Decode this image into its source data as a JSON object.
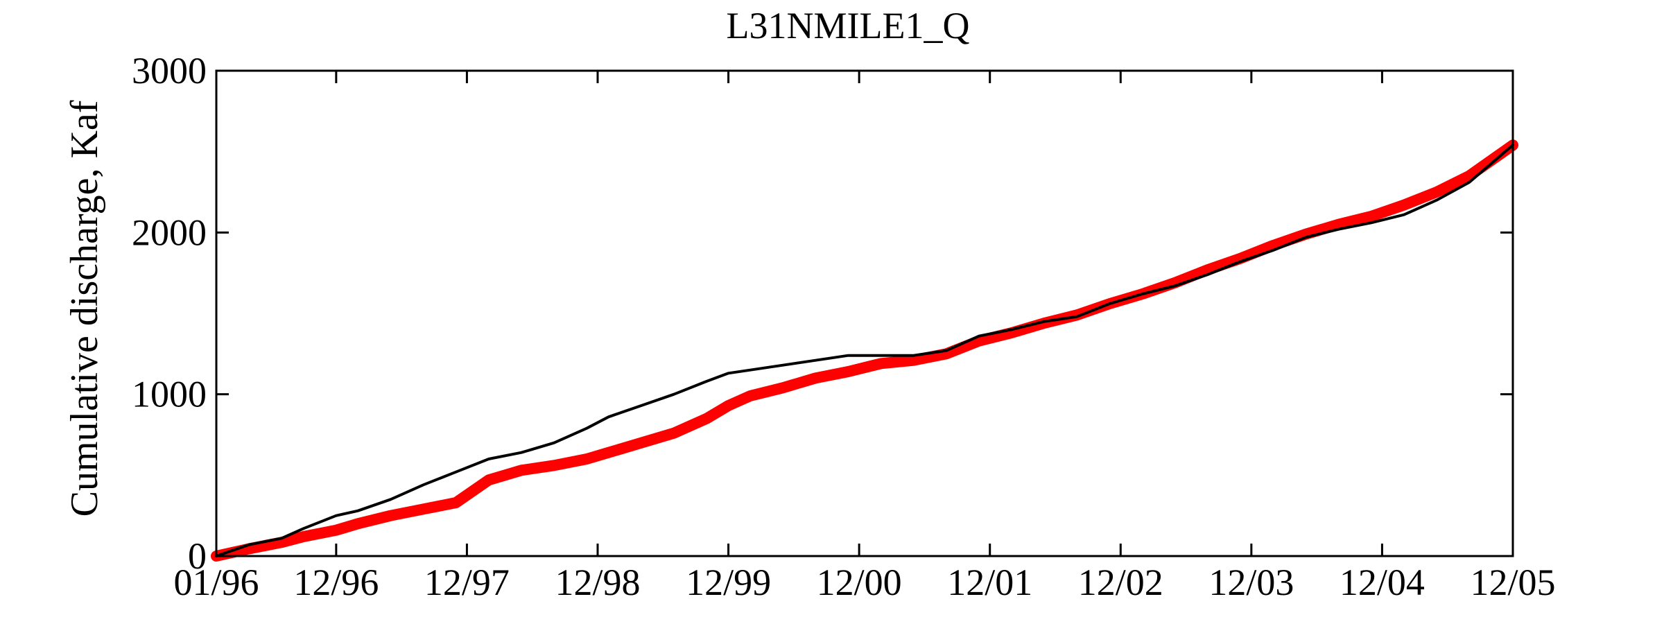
{
  "chart_data": {
    "type": "line",
    "title": "L31NMILE1_Q",
    "xlabel": "",
    "ylabel": "Cumulative discharge, Kaf",
    "ylim": [
      0,
      3000
    ],
    "xlim": [
      "1996-01",
      "2005-12"
    ],
    "grid": false,
    "yticks": [
      "0",
      "1000",
      "2000",
      "3000"
    ],
    "xticks": [
      {
        "label": "01/96",
        "date": "1996-01"
      },
      {
        "label": "12/96",
        "date": "1996-12"
      },
      {
        "label": "12/97",
        "date": "1997-12"
      },
      {
        "label": "12/98",
        "date": "1998-12"
      },
      {
        "label": "12/99",
        "date": "1999-12"
      },
      {
        "label": "12/00",
        "date": "2000-12"
      },
      {
        "label": "12/01",
        "date": "2001-12"
      },
      {
        "label": "12/02",
        "date": "2002-12"
      },
      {
        "label": "12/03",
        "date": "2003-12"
      },
      {
        "label": "12/04",
        "date": "2004-12"
      },
      {
        "label": "12/05",
        "date": "2005-12"
      }
    ],
    "series": [
      {
        "color": "#000000",
        "x": [
          "1996-01",
          "1996-04",
          "1996-07",
          "1996-09",
          "1996-12",
          "1997-02",
          "1997-05",
          "1997-08",
          "1997-11",
          "1998-02",
          "1998-05",
          "1998-08",
          "1998-11",
          "1999-01",
          "1999-04",
          "1999-07",
          "1999-10",
          "1999-12",
          "2000-02",
          "2000-05",
          "2000-08",
          "2000-11",
          "2001-02",
          "2001-05",
          "2001-08",
          "2001-11",
          "2002-02",
          "2002-05",
          "2002-08",
          "2002-11",
          "2003-02",
          "2003-05",
          "2003-08",
          "2003-11",
          "2004-02",
          "2004-05",
          "2004-08",
          "2004-11",
          "2005-02",
          "2005-05",
          "2005-08",
          "2005-12"
        ],
        "y": [
          0,
          70,
          110,
          170,
          250,
          280,
          350,
          440,
          520,
          600,
          640,
          700,
          790,
          860,
          930,
          1000,
          1080,
          1130,
          1150,
          1180,
          1210,
          1240,
          1240,
          1240,
          1270,
          1360,
          1400,
          1450,
          1480,
          1560,
          1620,
          1670,
          1740,
          1820,
          1890,
          1970,
          2020,
          2060,
          2110,
          2200,
          2310,
          2540
        ]
      },
      {
        "color": "#ff0000",
        "x": [
          "1996-01",
          "1996-04",
          "1996-07",
          "1996-09",
          "1996-12",
          "1997-02",
          "1997-05",
          "1997-08",
          "1997-11",
          "1998-02",
          "1998-05",
          "1998-08",
          "1998-11",
          "1999-01",
          "1999-04",
          "1999-07",
          "1999-10",
          "1999-12",
          "2000-02",
          "2000-05",
          "2000-08",
          "2000-11",
          "2001-02",
          "2001-05",
          "2001-08",
          "2001-11",
          "2002-02",
          "2002-05",
          "2002-08",
          "2002-11",
          "2003-02",
          "2003-05",
          "2003-08",
          "2003-11",
          "2004-02",
          "2004-05",
          "2004-08",
          "2004-11",
          "2005-02",
          "2005-05",
          "2005-08",
          "2005-12"
        ],
        "y": [
          0,
          45,
          85,
          120,
          160,
          200,
          250,
          290,
          330,
          470,
          530,
          560,
          600,
          640,
          700,
          760,
          850,
          930,
          990,
          1040,
          1100,
          1140,
          1190,
          1210,
          1250,
          1330,
          1380,
          1440,
          1490,
          1560,
          1620,
          1690,
          1770,
          1840,
          1920,
          1990,
          2050,
          2100,
          2170,
          2250,
          2350,
          2540
        ]
      }
    ]
  }
}
